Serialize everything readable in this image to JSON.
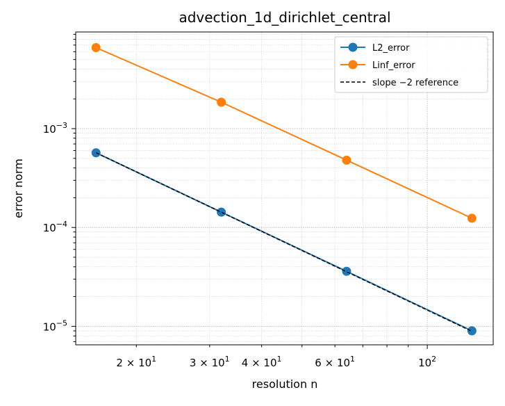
{
  "chart_data": {
    "type": "line",
    "title": "advection_1d_dirichlet_central",
    "xlabel": "resolution n",
    "ylabel": "error norm",
    "xscale": "log",
    "yscale": "log",
    "x": [
      16,
      32,
      64,
      128
    ],
    "xlim": [
      14.3,
      144
    ],
    "ylim": [
      6.5e-06,
      0.0095
    ],
    "grid": true,
    "legend_position": "top-right",
    "series": [
      {
        "name": "L2_error",
        "color": "#1f77b4",
        "marker": "circle",
        "line": "solid",
        "values": [
          0.00057,
          0.000143,
          3.6e-05,
          9e-06
        ]
      },
      {
        "name": "Linf_error",
        "color": "#ff7f0e",
        "marker": "circle",
        "line": "solid",
        "values": [
          0.0066,
          0.00185,
          0.00048,
          0.000124
        ]
      },
      {
        "name": "slope −2 reference",
        "color": "#000000",
        "marker": "none",
        "line": "dashed",
        "values": [
          0.00057,
          0.0001425,
          3.5625e-05,
          8.906e-06
        ]
      }
    ],
    "x_ticks": [
      {
        "value": 20,
        "base": "2 × 10",
        "exp": "1"
      },
      {
        "value": 30,
        "base": "3 × 10",
        "exp": "1"
      },
      {
        "value": 40,
        "base": "4 × 10",
        "exp": "1"
      },
      {
        "value": 60,
        "base": "6 × 10",
        "exp": "1"
      },
      {
        "value": 100,
        "base": "10",
        "exp": "2"
      }
    ],
    "y_ticks": [
      {
        "value": 1e-05,
        "base": "10",
        "exp": "−5"
      },
      {
        "value": 0.0001,
        "base": "10",
        "exp": "−4"
      },
      {
        "value": 0.001,
        "base": "10",
        "exp": "−3"
      }
    ]
  }
}
